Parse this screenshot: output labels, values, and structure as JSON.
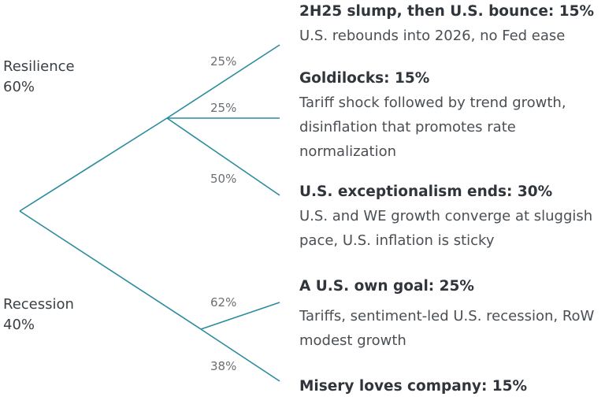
{
  "colors": {
    "line": "#2a8b9e",
    "text": "#333a40"
  },
  "root_branches": [
    {
      "name": "Resilience",
      "pct": "60%"
    },
    {
      "name": "Recession",
      "pct": "40%"
    }
  ],
  "edge_labels": [
    "25%",
    "25%",
    "50%",
    "62%",
    "38%"
  ],
  "scenarios": [
    {
      "title": "2H25 slump, then U.S. bounce: 15%",
      "desc": "U.S. rebounds into 2026, no Fed ease"
    },
    {
      "title": "Goldilocks: 15%",
      "desc": "Tariff shock followed by trend growth, disinflation that promotes rate normalization"
    },
    {
      "title": "U.S. exceptionalism ends: 30%",
      "desc": "U.S. and WE growth converge at sluggish pace, U.S. inflation is sticky"
    },
    {
      "title": "A U.S. own goal: 25%",
      "desc": "Tariffs, sentiment-led U.S. recession, RoW modest growth"
    },
    {
      "title": "Misery loves company: 15%",
      "desc": ""
    }
  ]
}
